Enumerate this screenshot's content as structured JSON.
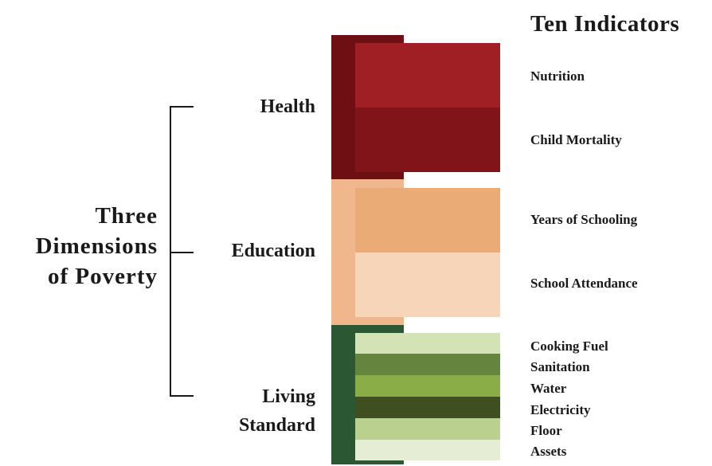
{
  "title": "Ten Indicators",
  "main_title": [
    "Three",
    "Dimensions",
    "of Poverty"
  ],
  "dimensions": [
    {
      "label": [
        "Health"
      ],
      "color": "#6e0f14",
      "indicators": [
        {
          "label": "Nutrition",
          "color": "#a01f24"
        },
        {
          "label": "Child Mortality",
          "color": "#811419"
        }
      ]
    },
    {
      "label": [
        "Education"
      ],
      "color": "#f1b78c",
      "indicators": [
        {
          "label": "Years of Schooling",
          "color": "#ebab77"
        },
        {
          "label": "School Attendance",
          "color": "#f7d5b8"
        }
      ]
    },
    {
      "label": [
        "Living",
        "Standard"
      ],
      "color": "#2b5732",
      "indicators": [
        {
          "label": "Cooking Fuel",
          "color": "#d3e3b5"
        },
        {
          "label": "Sanitation",
          "color": "#65843e"
        },
        {
          "label": "Water",
          "color": "#8aad47"
        },
        {
          "label": "Electricity",
          "color": "#3f4f22"
        },
        {
          "label": "Floor",
          "color": "#bad08e"
        },
        {
          "label": "Assets",
          "color": "#e6edd5"
        }
      ]
    }
  ]
}
